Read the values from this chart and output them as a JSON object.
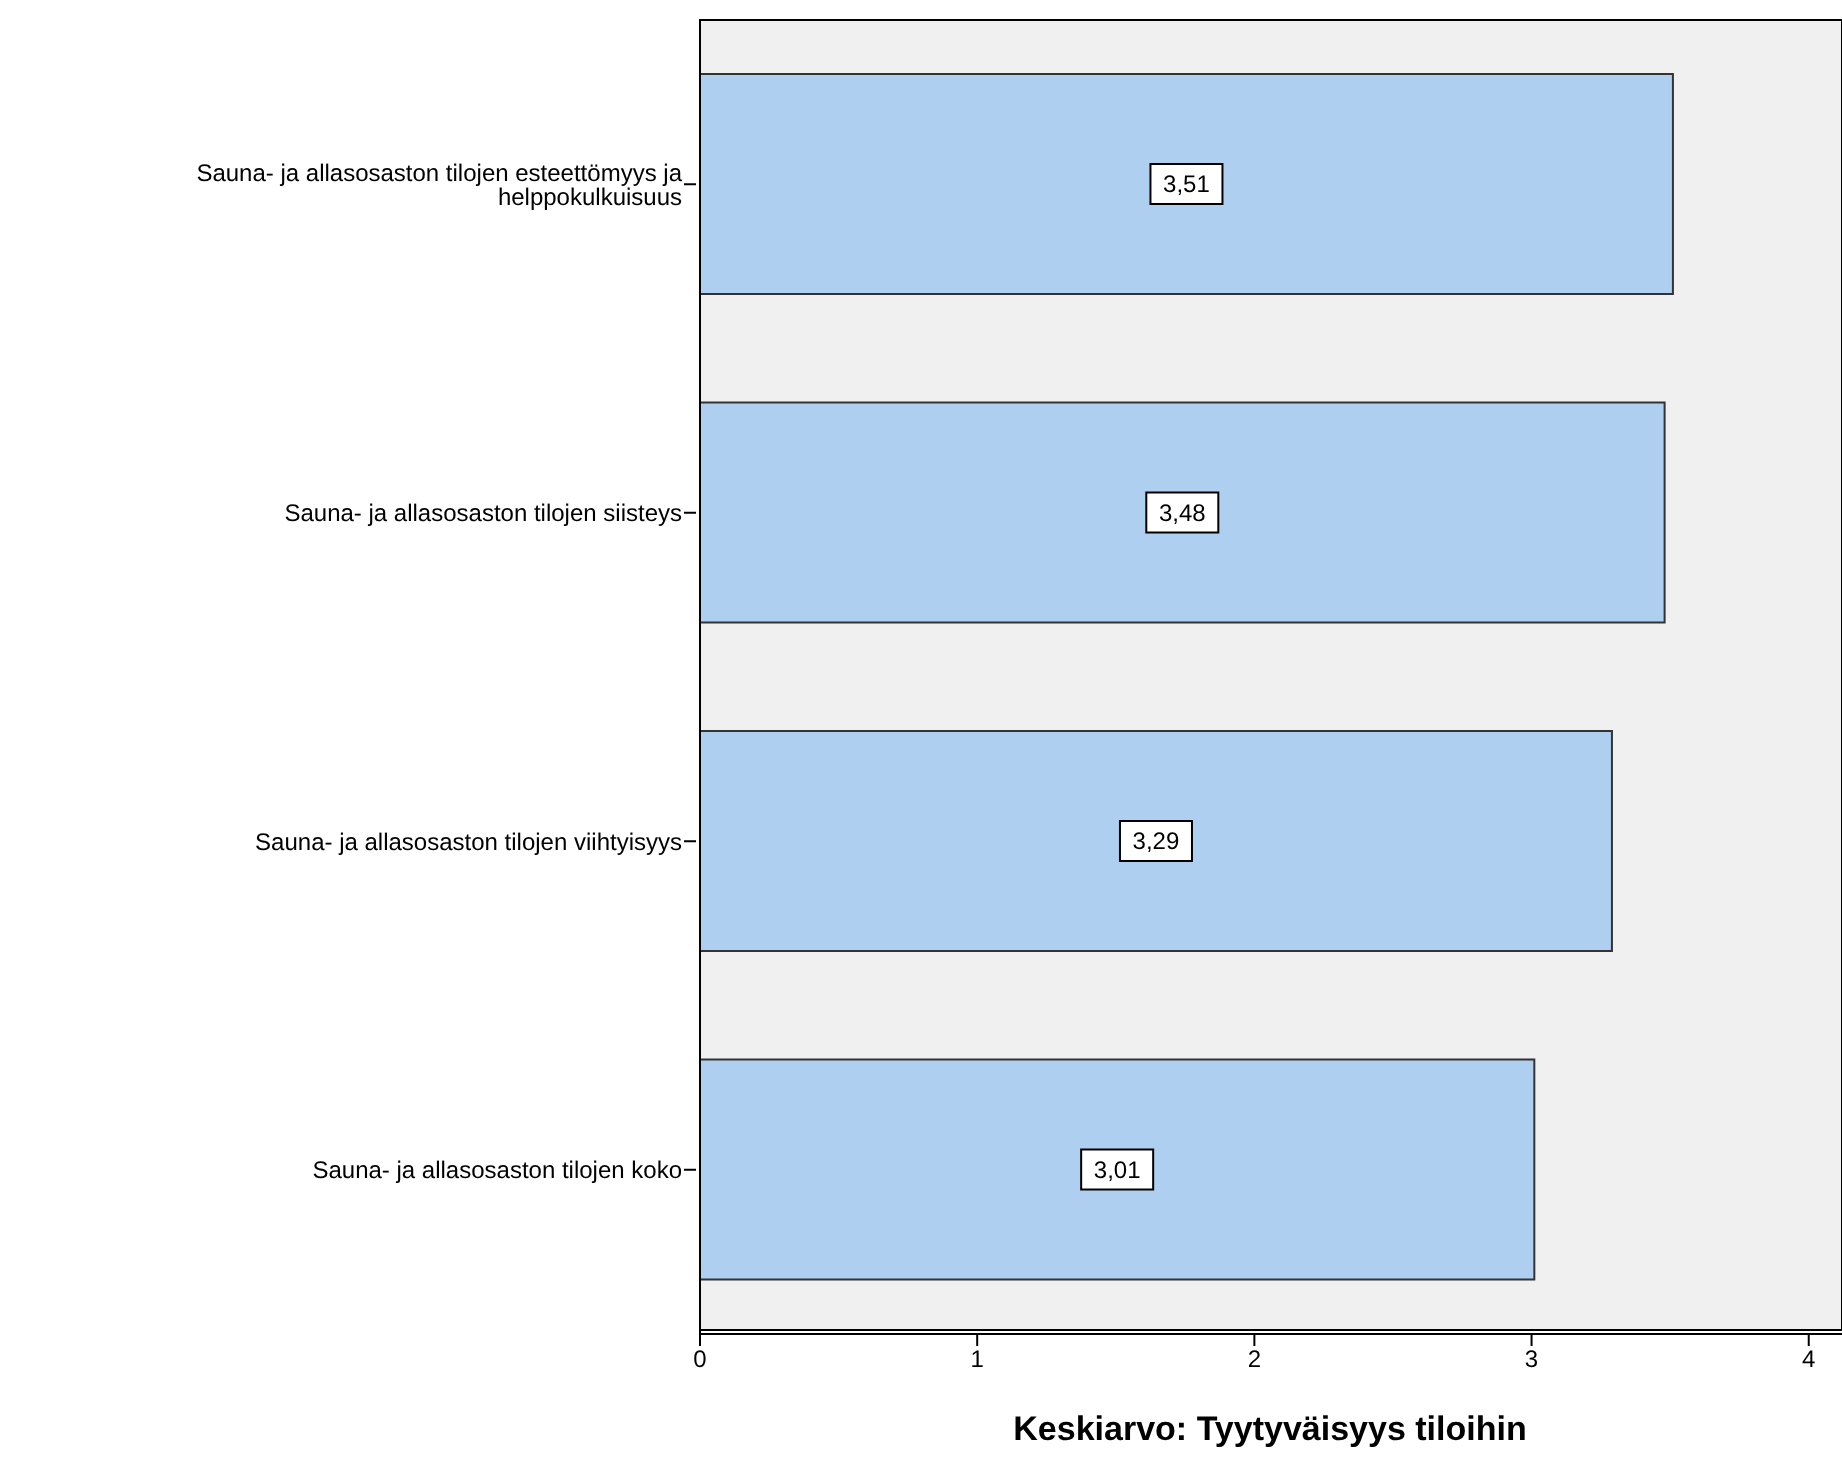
{
  "chart_data": {
    "type": "bar",
    "orientation": "horizontal",
    "xlabel": "Keskiarvo: Tyytyväisyys tiloihin",
    "categories": [
      "Sauna- ja allasosaston tilojen esteettömyys ja helppokulkuisuus",
      "Sauna- ja allasosaston tilojen siisteys",
      "Sauna- ja allasosaston tilojen viihtyisyys",
      "Sauna- ja allasosaston tilojen koko"
    ],
    "values": [
      3.51,
      3.48,
      3.29,
      3.01
    ],
    "value_labels": [
      "3,51",
      "3,48",
      "3,29",
      "3,01"
    ],
    "color": "#aecff0",
    "xlim": [
      0,
      4.12
    ],
    "xticks": [
      0,
      1,
      2,
      3,
      4
    ]
  }
}
